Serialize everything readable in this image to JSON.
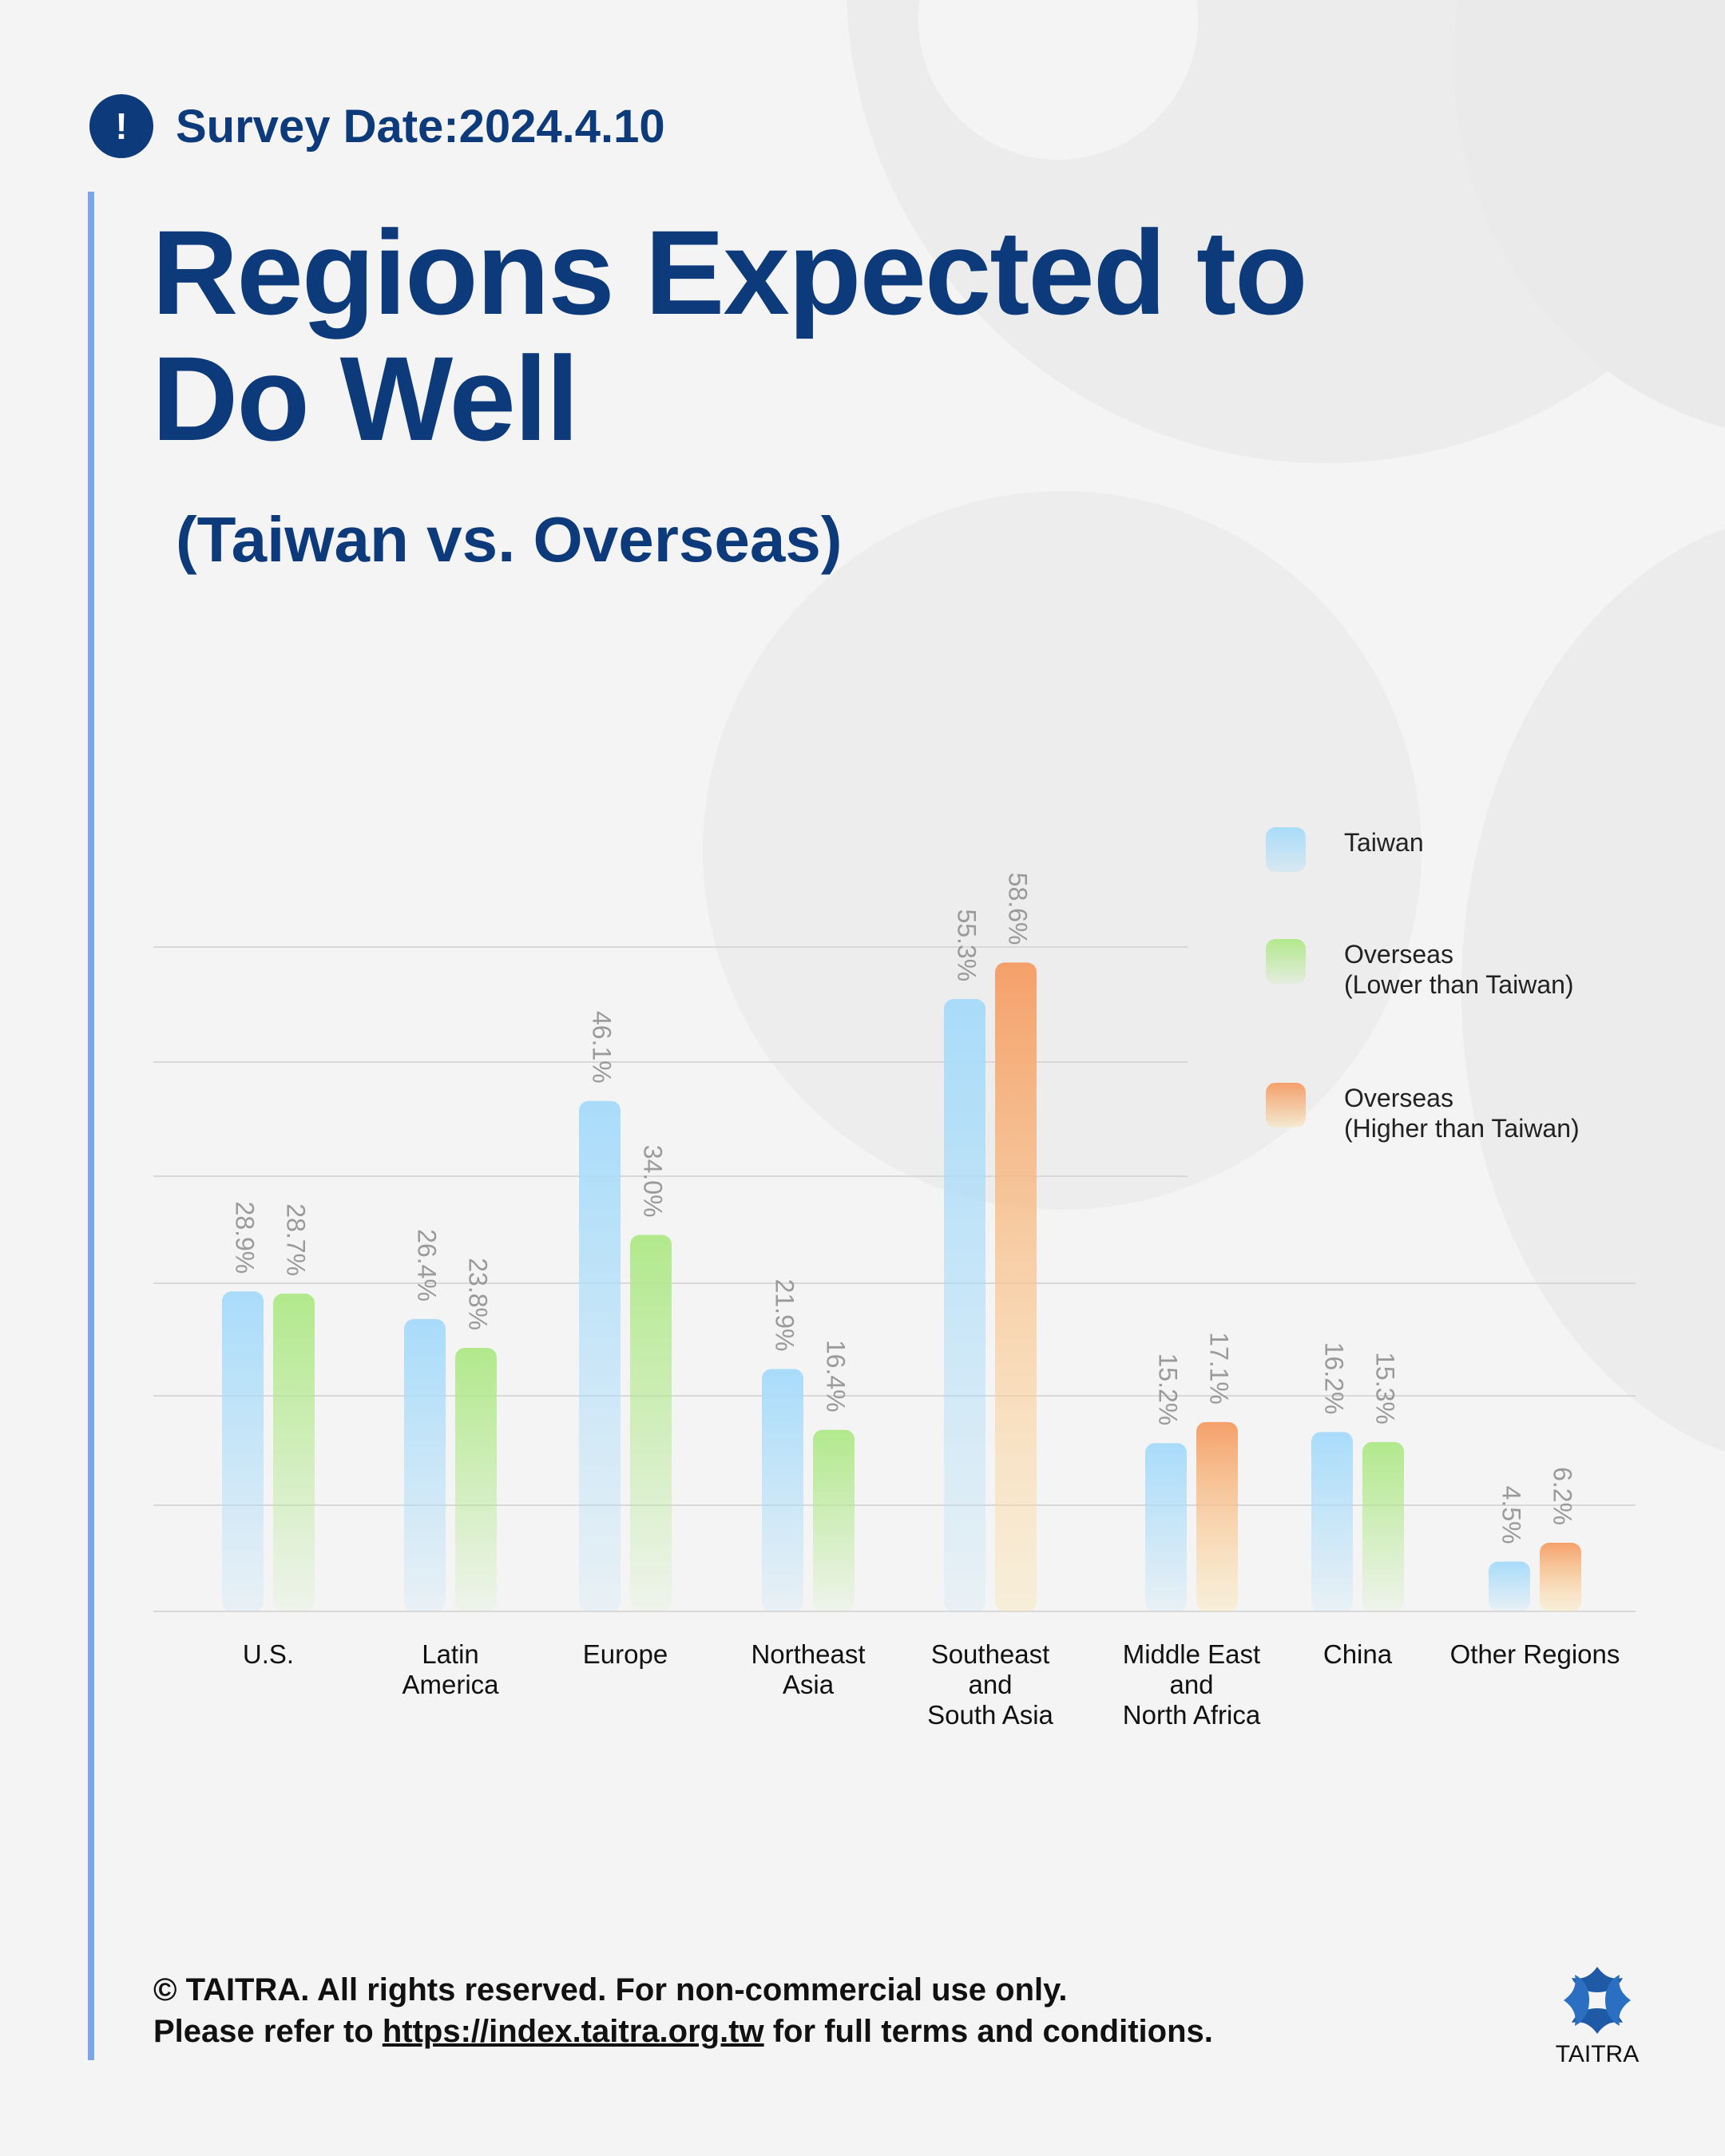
{
  "header": {
    "survey_date": "Survey Date:2024.4.10",
    "alert_symbol": "!",
    "title": "Regions Expected to Do Well",
    "subtitle": "(Taiwan vs. Overseas)"
  },
  "legend": {
    "taiwan": "Taiwan",
    "overseas_lower": "Overseas\n(Lower than Taiwan)",
    "overseas_higher": "Overseas\n(Higher than Taiwan)"
  },
  "colors": {
    "taiwan": "#a9dcfa",
    "overseas_lower": "#b2e98c",
    "overseas_higher": "#f5a06a",
    "title": "#0d3a7a",
    "accent_bar": "#7aa6e6",
    "value_label": "#9a9a9a"
  },
  "chart_data": {
    "type": "bar",
    "title": "Regions Expected to Do Well",
    "subtitle": "(Taiwan vs. Overseas)",
    "categories": [
      "U.S.",
      "Latin\nAmerica",
      "Europe",
      "Northeast\nAsia",
      "Southeast\nand\nSouth Asia",
      "Middle East\nand\nNorth Africa",
      "China",
      "Other Regions"
    ],
    "series": [
      {
        "name": "Taiwan",
        "values": [
          28.9,
          26.4,
          46.1,
          21.9,
          55.3,
          15.2,
          16.2,
          4.5
        ]
      },
      {
        "name": "Overseas",
        "values": [
          28.7,
          23.8,
          34.0,
          16.4,
          58.6,
          17.1,
          15.3,
          6.2
        ]
      }
    ],
    "value_labels": {
      "taiwan": [
        "28.9%",
        "26.4%",
        "46.1%",
        "21.9%",
        "55.3%",
        "15.2%",
        "16.2%",
        "4.5%"
      ],
      "overseas": [
        "28.7%",
        "23.8%",
        "34.0%",
        "16.4%",
        "58.6%",
        "17.1%",
        "15.3%",
        "6.2%"
      ]
    },
    "ylim": [
      0,
      60
    ],
    "grid": true,
    "legend_position": "top-right"
  },
  "footer": {
    "line1": "© TAITRA. All rights reserved. For non-commercial use only.",
    "line2_prefix": "Please refer to ",
    "link_text": "https://index.taitra.org.tw",
    "line2_suffix": " for full terms and conditions."
  },
  "logo": {
    "text": "TAITRA",
    "icon": "taitra-logo-icon"
  }
}
